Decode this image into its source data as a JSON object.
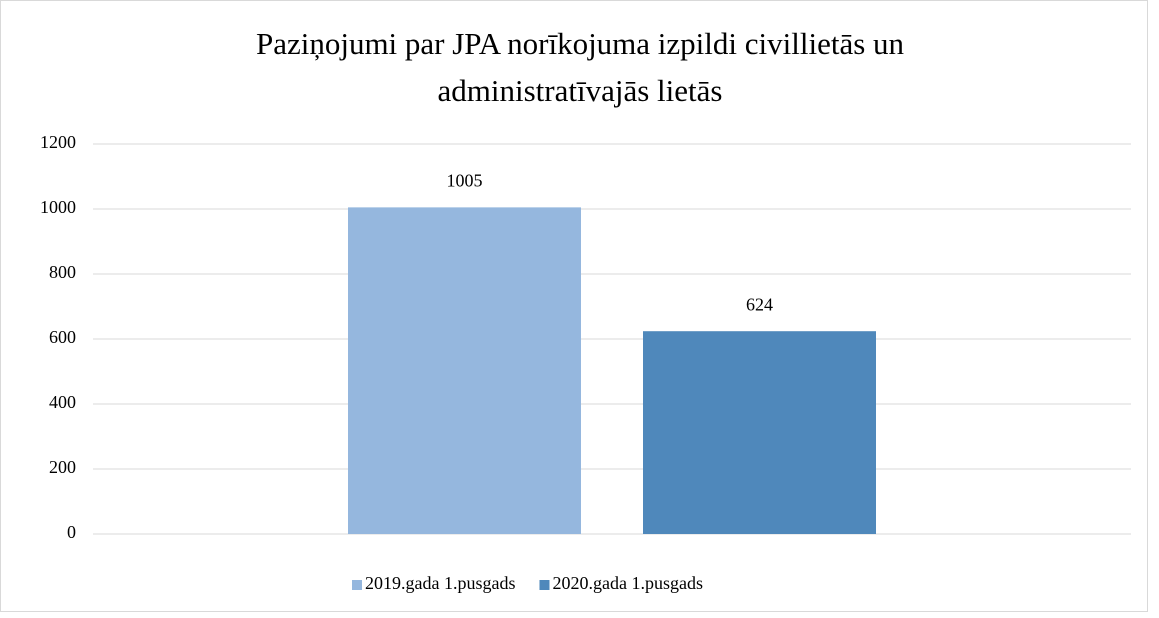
{
  "chart_data": {
    "type": "bar",
    "title": "Paziņojumi par JPA norīkojuma izpildi civillietās un administratīvajās lietās",
    "categories": [
      null
    ],
    "series": [
      {
        "name": "2019.gada 1.pusgads",
        "color": "#95b7de",
        "values": [
          1005
        ]
      },
      {
        "name": "2020.gada 1.pusgads",
        "color": "#4f88bb",
        "values": [
          624
        ]
      }
    ],
    "ylim": [
      0,
      1200
    ],
    "yticks": [
      0,
      200,
      400,
      600,
      800,
      1000,
      1200
    ],
    "grid": true,
    "legend": "bottom"
  }
}
